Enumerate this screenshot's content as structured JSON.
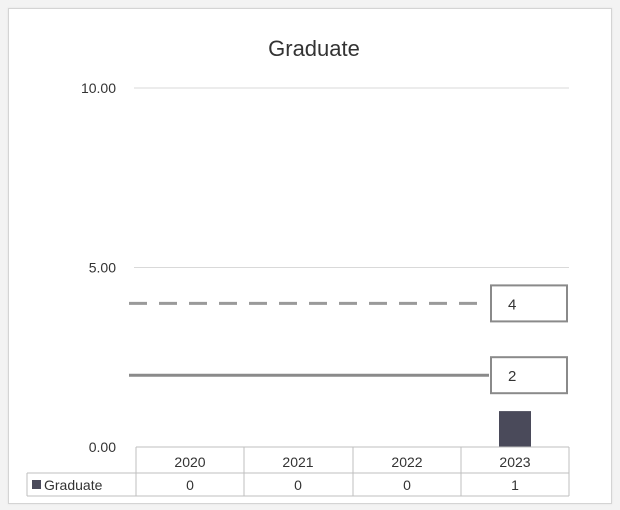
{
  "chart_data": {
    "type": "bar",
    "title": "Graduate",
    "categories": [
      "2020",
      "2021",
      "2022",
      "2023"
    ],
    "series": [
      {
        "name": "Graduate",
        "values": [
          0,
          0,
          0,
          1
        ],
        "color": "#4a4a5a"
      }
    ],
    "ylim": [
      0,
      10
    ],
    "y_ticks": [
      "0.00",
      "5.00",
      "10.00"
    ],
    "reference_lines": [
      {
        "value": 4,
        "label": "4",
        "style": "dashed",
        "color": "#9a9a9a"
      },
      {
        "value": 2,
        "label": "2",
        "style": "solid",
        "color": "#8a8a8a"
      }
    ],
    "data_table": true,
    "grid": true,
    "legend": "data-table"
  }
}
